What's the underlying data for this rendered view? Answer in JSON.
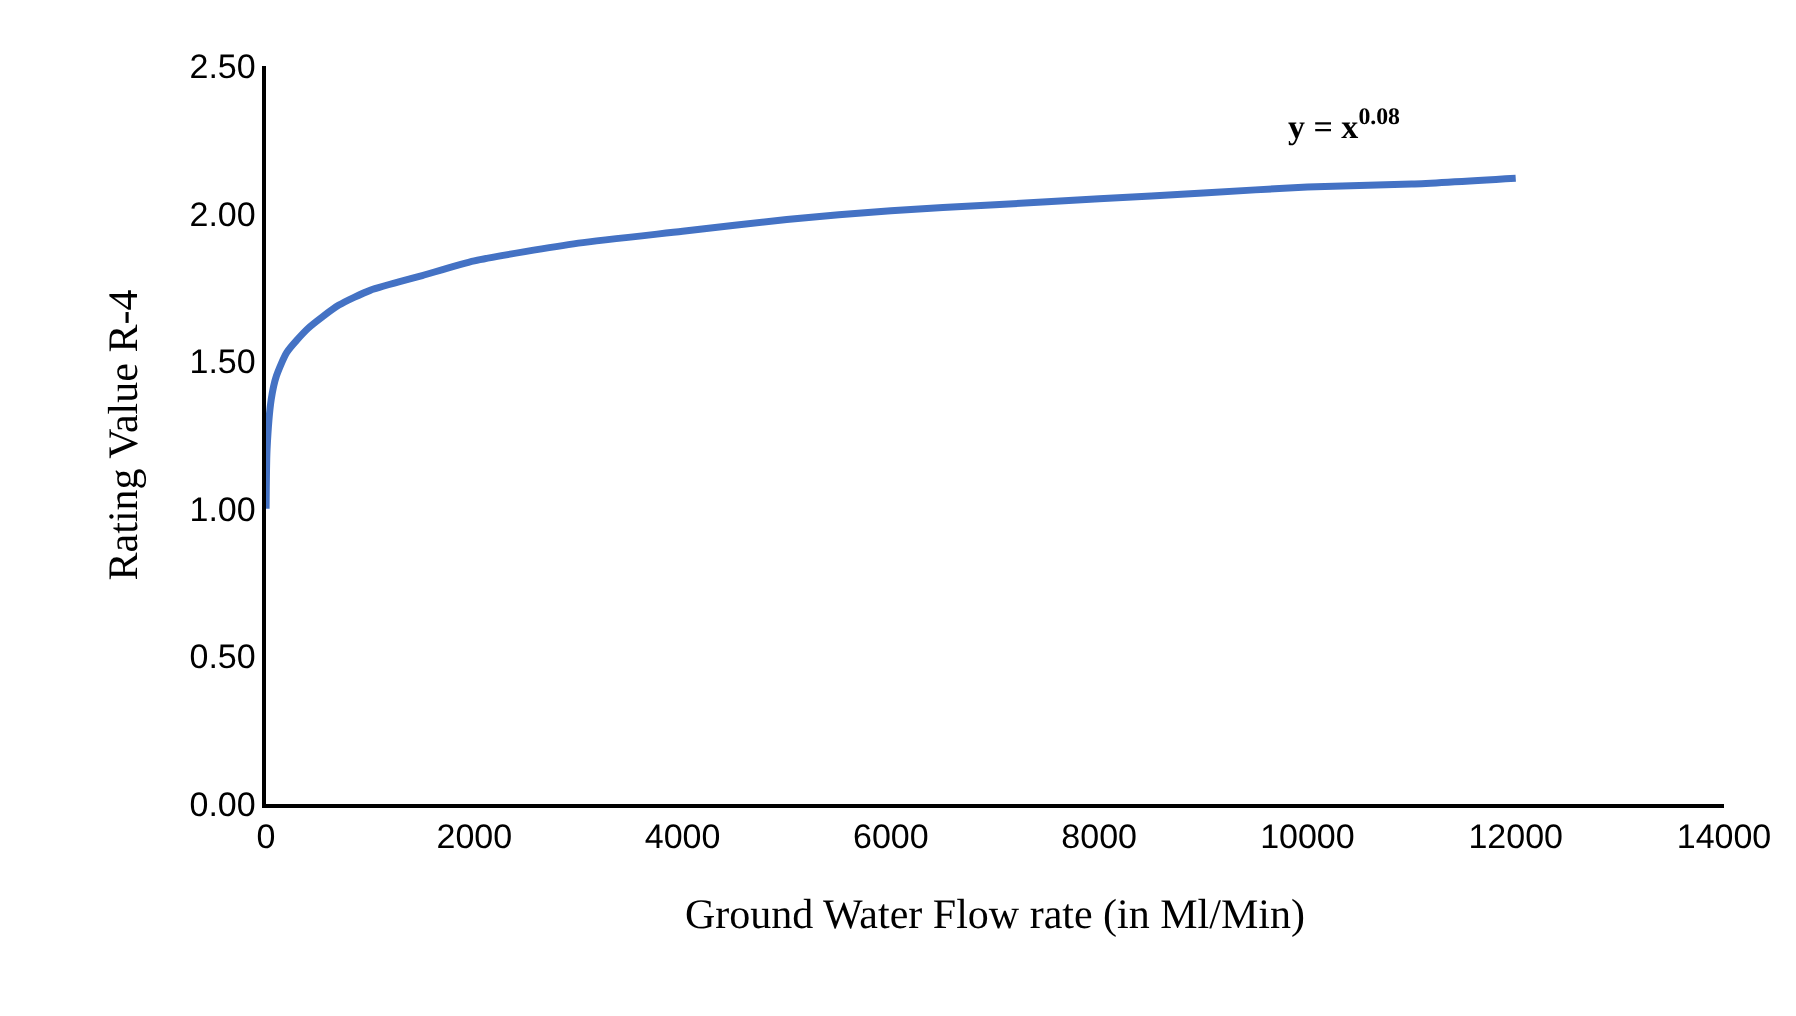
{
  "chart_data": {
    "type": "line",
    "xlabel": "Ground Water Flow rate (in Ml/Min)",
    "ylabel": "Rating Value R-4",
    "x": [
      1,
      10,
      50,
      100,
      200,
      400,
      700,
      1000,
      1500,
      2000,
      3000,
      4000,
      5000,
      6000,
      7000,
      8000,
      9000,
      10000,
      11000,
      12000
    ],
    "series": [
      {
        "color": "#4472c4",
        "values": [
          1.0,
          1.2,
          1.37,
          1.45,
          1.53,
          1.61,
          1.69,
          1.74,
          1.79,
          1.84,
          1.9,
          1.94,
          1.98,
          2.01,
          2.03,
          2.05,
          2.07,
          2.09,
          2.1,
          2.12
        ]
      }
    ],
    "xlim": [
      0,
      14000
    ],
    "xticks": [
      0,
      2000,
      4000,
      6000,
      8000,
      10000,
      12000,
      14000
    ],
    "ylim": [
      0,
      2.5
    ],
    "yticks": [
      {
        "value": 0,
        "label": "0.00"
      },
      {
        "value": 0.5,
        "label": "0.50"
      },
      {
        "value": 1,
        "label": "1.00"
      },
      {
        "value": 1.5,
        "label": "1.50"
      },
      {
        "value": 2,
        "label": "2.00"
      },
      {
        "value": 2.5,
        "label": "2.50"
      }
    ],
    "annotations": [
      "y = x$^{0.08}$"
    ],
    "grid": false,
    "marker": "none",
    "line_style": "solid"
  }
}
